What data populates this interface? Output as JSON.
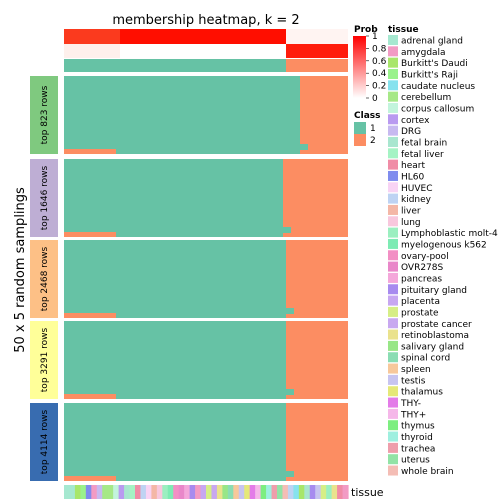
{
  "chart_data": {
    "type": "heatmap",
    "title": "membership heatmap, k = 2",
    "ylabel": "50 x 5 random samplings",
    "bottom_annotation_label": "tissue",
    "top_annotation_labels": [
      "Prob",
      "Class"
    ],
    "prob_legend": {
      "title": "Prob",
      "ticks": [
        "0",
        "0.2",
        "0.4",
        "0.6",
        "0.8",
        "1"
      ],
      "low_color": "#FFFFFF",
      "high_color": "#FF0000"
    },
    "class_legend": {
      "title": "Class",
      "items": [
        {
          "label": "1",
          "color": "#66C2A5"
        },
        {
          "label": "2",
          "color": "#FC8D62"
        }
      ]
    },
    "row_groups": [
      {
        "label": "top 823 rows",
        "color": "#7FC97F",
        "class2_fraction": 0.17
      },
      {
        "label": "top 1646 rows",
        "color": "#BEAED4",
        "class2_fraction": 0.23
      },
      {
        "label": "top 2468 rows",
        "color": "#FDC086",
        "class2_fraction": 0.22
      },
      {
        "label": "top 3291 rows",
        "color": "#FFFF99",
        "class2_fraction": 0.22
      },
      {
        "label": "top 4114 rows",
        "color": "#386CB0",
        "class2_fraction": 0.22
      }
    ],
    "tissue_legend": {
      "title": "tissue",
      "items": [
        {
          "label": "adrenal gland",
          "color": "#A6E8D0"
        },
        {
          "label": "amygdala",
          "color": "#F29BC4"
        },
        {
          "label": "Burkitt's Daudi",
          "color": "#A8E66A"
        },
        {
          "label": "Burkitt's Raji",
          "color": "#9AF28C"
        },
        {
          "label": "caudate nucleus",
          "color": "#86E2EE"
        },
        {
          "label": "cerebellum",
          "color": "#A6E887"
        },
        {
          "label": "corpus callosum",
          "color": "#C2F4DC"
        },
        {
          "label": "cortex",
          "color": "#B99AF0"
        },
        {
          "label": "DRG",
          "color": "#C7B9F0"
        },
        {
          "label": "fetal brain",
          "color": "#A8E6CF"
        },
        {
          "label": "fetal liver",
          "color": "#A5F3C4"
        },
        {
          "label": "heart",
          "color": "#F08CA6"
        },
        {
          "label": "HL60",
          "color": "#7F8CEE"
        },
        {
          "label": "HUVEC",
          "color": "#F8D3F4"
        },
        {
          "label": "kidney",
          "color": "#BED3F3"
        },
        {
          "label": "liver",
          "color": "#F4B7A6"
        },
        {
          "label": "lung",
          "color": "#F8C7DD"
        },
        {
          "label": "Lymphoblastic molt-4",
          "color": "#9BEFC0"
        },
        {
          "label": "myelogenous k562",
          "color": "#7EEBB4"
        },
        {
          "label": "ovary-pool",
          "color": "#F28FC4"
        },
        {
          "label": "OVR278S",
          "color": "#E987C9"
        },
        {
          "label": "pancreas",
          "color": "#F4A7DA"
        },
        {
          "label": "pituitary gland",
          "color": "#A78BEF"
        },
        {
          "label": "placenta",
          "color": "#C7A7F1"
        },
        {
          "label": "prostate",
          "color": "#D6EE86"
        },
        {
          "label": "prostate cancer",
          "color": "#C8A8F0"
        },
        {
          "label": "retinoblastoma",
          "color": "#EAE28D"
        },
        {
          "label": "salivary gland",
          "color": "#98E687"
        },
        {
          "label": "spinal cord",
          "color": "#8ADDB3"
        },
        {
          "label": "spleen",
          "color": "#F7C89B"
        },
        {
          "label": "testis",
          "color": "#C7C4F0"
        },
        {
          "label": "thalamus",
          "color": "#E5E878"
        },
        {
          "label": "THY-",
          "color": "#E37BE8"
        },
        {
          "label": "THY+",
          "color": "#F5B7E9"
        },
        {
          "label": "thymus",
          "color": "#7DEE80"
        },
        {
          "label": "thyroid",
          "color": "#9EEFDF"
        },
        {
          "label": "trachea",
          "color": "#EE9EAB"
        },
        {
          "label": "uterus",
          "color": "#92E3A6"
        },
        {
          "label": "whole brain",
          "color": "#F4BDB5"
        }
      ]
    }
  }
}
